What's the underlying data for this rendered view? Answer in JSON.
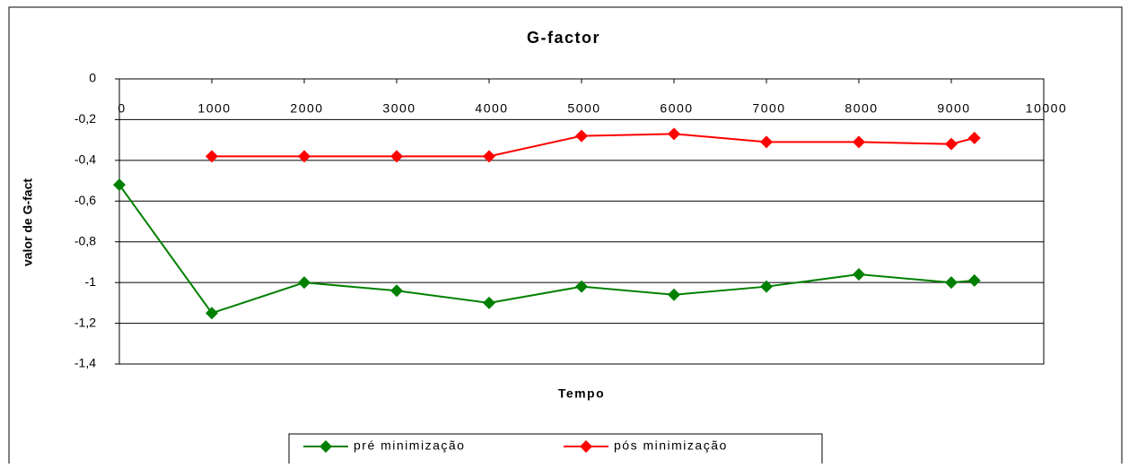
{
  "chart_data": {
    "type": "line",
    "title": "G-factor",
    "x_label": "Tempo",
    "y_label": "valor de G-fact",
    "xlim": [
      0,
      10000
    ],
    "xticks": [
      0,
      1000,
      2000,
      3000,
      4000,
      5000,
      6000,
      7000,
      8000,
      9000,
      10000
    ],
    "ylim": [
      -1.4,
      0
    ],
    "yticks": [
      0,
      {
        "value": -0.2,
        "label": "-0,2"
      },
      {
        "value": -0.4,
        "label": "-0,4"
      },
      {
        "value": -0.6,
        "label": "-0,6"
      },
      {
        "value": -0.8,
        "label": "-0,8"
      },
      -1,
      {
        "value": -1.2,
        "label": "-1,2"
      },
      {
        "value": -1.4,
        "label": "-1,4"
      }
    ],
    "grid": true,
    "legend": "bottom",
    "series": [
      {
        "name": "pré minimização",
        "color": "#008000",
        "x": [
          0,
          1000,
          2000,
          3000,
          4000,
          5000,
          6000,
          7000,
          8000,
          9000,
          9250
        ],
        "values": [
          -0.52,
          -1.15,
          -1.0,
          -1.04,
          -1.1,
          -1.02,
          -1.06,
          -1.02,
          -0.96,
          -1.0,
          -0.99
        ]
      },
      {
        "name": "pós minimização",
        "color": "#ff0000",
        "x": [
          1000,
          2000,
          3000,
          4000,
          5000,
          6000,
          7000,
          8000,
          9000,
          9250
        ],
        "values": [
          -0.38,
          -0.38,
          -0.38,
          -0.38,
          -0.28,
          -0.27,
          -0.31,
          -0.31,
          -0.32,
          -0.29
        ]
      }
    ]
  }
}
